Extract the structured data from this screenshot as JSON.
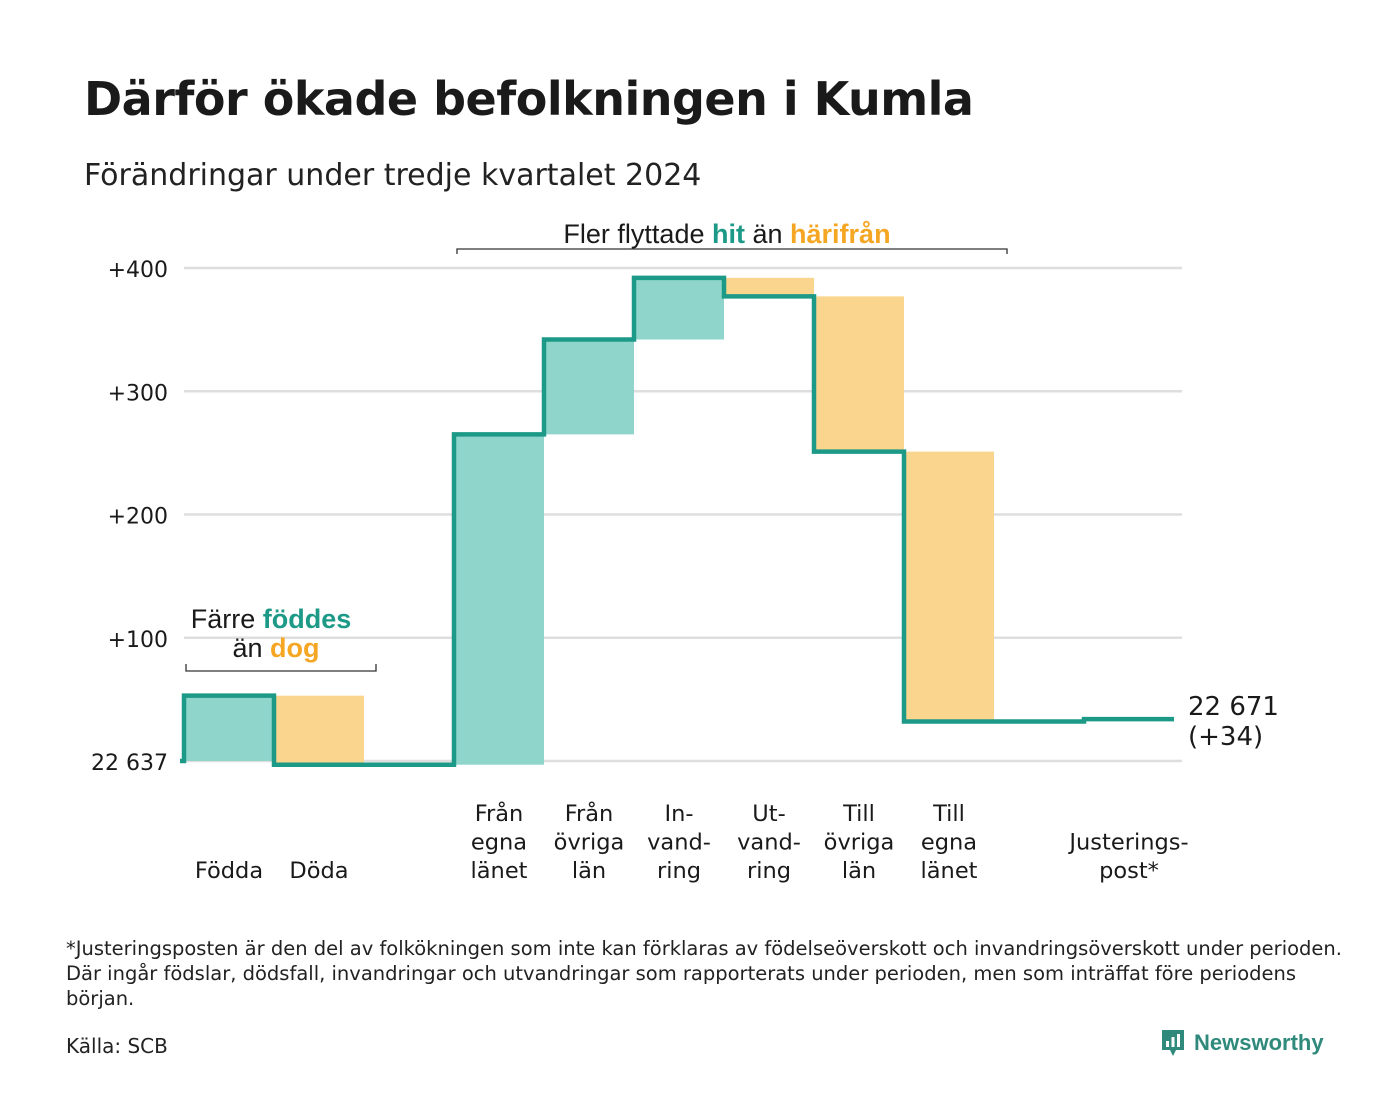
{
  "header": {
    "title": "Därför ökade befolkningen i Kumla",
    "subtitle": "Förändringar under tredje kvartalet 2024"
  },
  "footnote": "*Justeringsposten är den del av folkökningen som inte kan förklaras av födelseöverskott och invandringsöverskott under perioden. Där ingår födslar, dödsfall, invandringar och utvandringar som rapporterats under perioden, men som inträffat före periodens början.",
  "source": "Källa: SCB",
  "brand": {
    "name": "Newsworthy",
    "icon": "newsworthy-chart-icon",
    "color": "#2f8a7c"
  },
  "colors": {
    "increase_fill": "#8fd5cb",
    "decrease_fill": "#fad58d",
    "line": "#1c9a87",
    "accent_teal": "#1c9a87",
    "accent_orange": "#f5a623"
  },
  "annotations": {
    "births": {
      "line1_a": "Färre ",
      "line1_b": "föddes",
      "line2_a": "än ",
      "line2_b": "dog"
    },
    "migration": {
      "a": "Fler flyttade ",
      "b": "hit",
      "c": " än ",
      "d": "härifrån"
    }
  },
  "chart_data": {
    "type": "waterfall",
    "base_label": "22 637",
    "end_label_line1": "22 671",
    "end_label_line2": "(+34)",
    "yticks": [
      {
        "value": 100,
        "label": "+100"
      },
      {
        "value": 200,
        "label": "+200"
      },
      {
        "value": 300,
        "label": "+300"
      },
      {
        "value": 400,
        "label": "+400"
      }
    ],
    "ylim": [
      0,
      400
    ],
    "steps": [
      {
        "category": [
          "Födda"
        ],
        "start": 0,
        "end": 53,
        "kind": "increase"
      },
      {
        "category": [
          "Döda"
        ],
        "start": 53,
        "end": -3,
        "kind": "decrease"
      },
      {
        "category": [],
        "start": -3,
        "end": -3,
        "kind": "spacer"
      },
      {
        "category": [
          "Från",
          "egna",
          "länet"
        ],
        "start": -3,
        "end": 265,
        "kind": "increase"
      },
      {
        "category": [
          "Från",
          "övriga",
          "län"
        ],
        "start": 265,
        "end": 342,
        "kind": "increase"
      },
      {
        "category": [
          "In-",
          "vand-",
          "ring"
        ],
        "start": 342,
        "end": 392,
        "kind": "increase"
      },
      {
        "category": [
          "Ut-",
          "vand-",
          "ring"
        ],
        "start": 392,
        "end": 377,
        "kind": "decrease"
      },
      {
        "category": [
          "Till",
          "övriga",
          "län"
        ],
        "start": 377,
        "end": 251,
        "kind": "decrease"
      },
      {
        "category": [
          "Till",
          "egna",
          "länet"
        ],
        "start": 251,
        "end": 32,
        "kind": "decrease"
      },
      {
        "category": [],
        "start": 32,
        "end": 32,
        "kind": "spacer"
      },
      {
        "category": [
          "Justerings-",
          "post*"
        ],
        "start": 32,
        "end": 34,
        "kind": "adjustment"
      }
    ]
  }
}
